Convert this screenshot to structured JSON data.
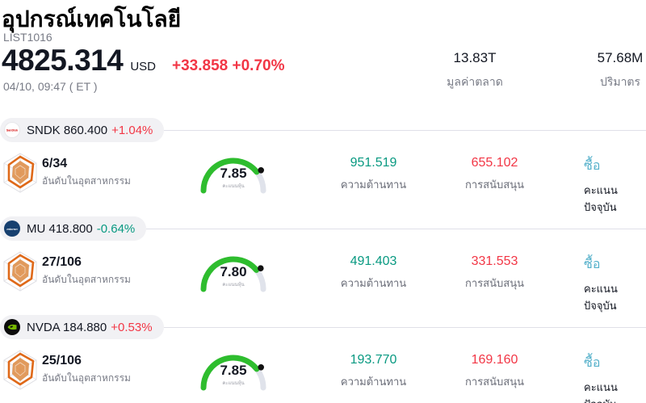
{
  "header": {
    "title": "อุปกรณ์เทคโนโลยี",
    "symbol": "LIST1016",
    "price": "4825.314",
    "currency": "USD",
    "change": "+33.858",
    "change_pct": "+0.70%",
    "datetime": "04/10, 09:47 ( ET )",
    "stats": [
      {
        "value": "13.83T",
        "label": "มูลค่าตลาด"
      },
      {
        "value": "57.68M",
        "label": "ปริมาตร"
      }
    ]
  },
  "labels": {
    "rank": "อันดับในอุตสาหกรรม",
    "gauge": "คะแนนหุ้น",
    "resistance": "ความต้านทาน",
    "support": "การสนับสนุน",
    "current_score": "คะแนนปัจจุบัน"
  },
  "colors": {
    "up": "#f23645",
    "down": "#089981",
    "resistance": "#089981",
    "support": "#f23645",
    "buy": "#54b0ca",
    "gauge_green": "#2ebd2e",
    "gauge_track": "#e0e3eb"
  },
  "rows": [
    {
      "ticker": "SNDK 860.400",
      "change_pct": "+1.04%",
      "change_color": "#f23645",
      "rank": "6/34",
      "score": 7.85,
      "score_label": "7.85",
      "resistance": "951.519",
      "support": "655.102",
      "signal": "ซื้อ",
      "logo": "sandisk-logo"
    },
    {
      "ticker": "MU 418.800",
      "change_pct": "-0.64%",
      "change_color": "#089981",
      "rank": "27/106",
      "score": 7.8,
      "score_label": "7.80",
      "resistance": "491.403",
      "support": "331.553",
      "signal": "ซื้อ",
      "logo": "micron-logo"
    },
    {
      "ticker": "NVDA 184.880",
      "change_pct": "+0.53%",
      "change_color": "#f23645",
      "rank": "25/106",
      "score": 7.85,
      "score_label": "7.85",
      "resistance": "193.770",
      "support": "169.160",
      "signal": "ซื้อ",
      "logo": "nvidia-logo"
    }
  ]
}
